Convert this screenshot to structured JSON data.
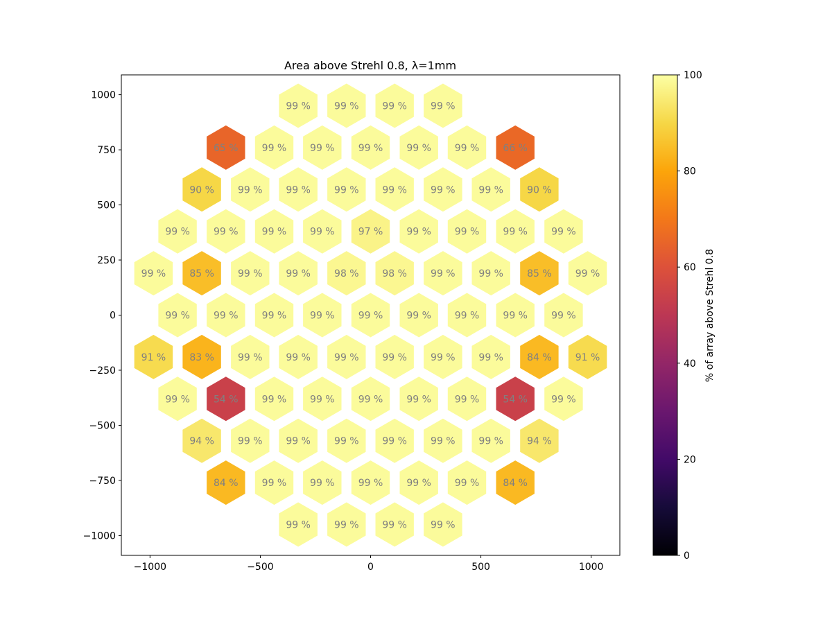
{
  "chart_data": {
    "type": "heatmap",
    "title": "Area above Strehl 0.8, λ=1mm",
    "xlim": [
      -1130,
      1130
    ],
    "ylim": [
      -1090,
      1090
    ],
    "xticks": [
      -1000,
      -500,
      0,
      500,
      1000
    ],
    "xtick_labels": [
      "−1000",
      "−500",
      "0",
      "500",
      "1000"
    ],
    "yticks": [
      1000,
      750,
      500,
      250,
      0,
      -250,
      -500,
      -750,
      -1000
    ],
    "ytick_labels": [
      "1000",
      "750",
      "500",
      "250",
      "0",
      "−250",
      "−500",
      "−750",
      "−1000"
    ],
    "colorbar": {
      "label": "% of array above Strehl 0.8",
      "colormap": "inferno",
      "range": [
        0,
        100
      ],
      "ticks": [
        0,
        20,
        40,
        60,
        80,
        100
      ],
      "tick_labels": [
        "0",
        "20",
        "40",
        "60",
        "80",
        "100"
      ]
    },
    "cell_label_color": "#808080",
    "grid": false,
    "rows": [
      {
        "y": 950,
        "x": [
          -328,
          -109,
          109,
          328
        ],
        "values": [
          99,
          99,
          99,
          99
        ],
        "labels": [
          "99 %",
          "99 %",
          "99 %",
          "99 %"
        ]
      },
      {
        "y": 760,
        "x": [
          -656,
          -437,
          -219,
          0,
          219,
          437,
          656
        ],
        "values": [
          65,
          99,
          99,
          99,
          99,
          99,
          66
        ],
        "labels": [
          "65 %",
          "99 %",
          "99 %",
          "99 %",
          "99 %",
          "99 %",
          "66 %"
        ]
      },
      {
        "y": 570,
        "x": [
          -765,
          -546,
          -328,
          -109,
          109,
          328,
          546,
          765
        ],
        "values": [
          90,
          99,
          99,
          99,
          99,
          99,
          99,
          90
        ],
        "labels": [
          "90 %",
          "99 %",
          "99 %",
          "99 %",
          "99 %",
          "99 %",
          "99 %",
          "90 %"
        ]
      },
      {
        "y": 380,
        "x": [
          -875,
          -656,
          -437,
          -219,
          0,
          219,
          437,
          656,
          875
        ],
        "values": [
          99,
          99,
          99,
          99,
          97,
          99,
          99,
          99,
          99
        ],
        "labels": [
          "99 %",
          "99 %",
          "99 %",
          "99 %",
          "97 %",
          "99 %",
          "99 %",
          "99 %",
          "99 %"
        ]
      },
      {
        "y": 190,
        "x": [
          -984,
          -765,
          -546,
          -328,
          -109,
          109,
          328,
          546,
          765,
          984
        ],
        "values": [
          99,
          85,
          99,
          99,
          98,
          98,
          99,
          99,
          85,
          99
        ],
        "labels": [
          "99 %",
          "85 %",
          "99 %",
          "99 %",
          "98 %",
          "98 %",
          "99 %",
          "99 %",
          "85 %",
          "99 %"
        ]
      },
      {
        "y": 0,
        "x": [
          -875,
          -656,
          -437,
          -219,
          0,
          219,
          437,
          656,
          875
        ],
        "values": [
          99,
          99,
          99,
          99,
          99,
          99,
          99,
          99,
          99
        ],
        "labels": [
          "99 %",
          "99 %",
          "99 %",
          "99 %",
          "99 %",
          "99 %",
          "99 %",
          "99 %",
          "99 %"
        ]
      },
      {
        "y": -190,
        "x": [
          -984,
          -765,
          -546,
          -328,
          -109,
          109,
          328,
          546,
          765,
          984
        ],
        "values": [
          91,
          83,
          99,
          99,
          99,
          99,
          99,
          99,
          84,
          91
        ],
        "labels": [
          "91 %",
          "83 %",
          "99 %",
          "99 %",
          "99 %",
          "99 %",
          "99 %",
          "99 %",
          "84 %",
          "91 %"
        ]
      },
      {
        "y": -380,
        "x": [
          -875,
          -656,
          -437,
          -219,
          0,
          219,
          437,
          656,
          875
        ],
        "values": [
          99,
          54,
          99,
          99,
          99,
          99,
          99,
          54,
          99
        ],
        "labels": [
          "99 %",
          "54 %",
          "99 %",
          "99 %",
          "99 %",
          "99 %",
          "99 %",
          "54 %",
          "99 %"
        ]
      },
      {
        "y": -570,
        "x": [
          -765,
          -546,
          -328,
          -109,
          109,
          328,
          546,
          765
        ],
        "values": [
          94,
          99,
          99,
          99,
          99,
          99,
          99,
          94
        ],
        "labels": [
          "94 %",
          "99 %",
          "99 %",
          "99 %",
          "99 %",
          "99 %",
          "99 %",
          "94 %"
        ]
      },
      {
        "y": -760,
        "x": [
          -656,
          -437,
          -219,
          0,
          219,
          437,
          656
        ],
        "values": [
          84,
          99,
          99,
          99,
          99,
          99,
          84
        ],
        "labels": [
          "84 %",
          "99 %",
          "99 %",
          "99 %",
          "99 %",
          "99 %",
          "84 %"
        ]
      },
      {
        "y": -950,
        "x": [
          -328,
          -109,
          109,
          328
        ],
        "values": [
          99,
          99,
          99,
          99
        ],
        "labels": [
          "99 %",
          "99 %",
          "99 %",
          "99 %"
        ]
      }
    ]
  }
}
